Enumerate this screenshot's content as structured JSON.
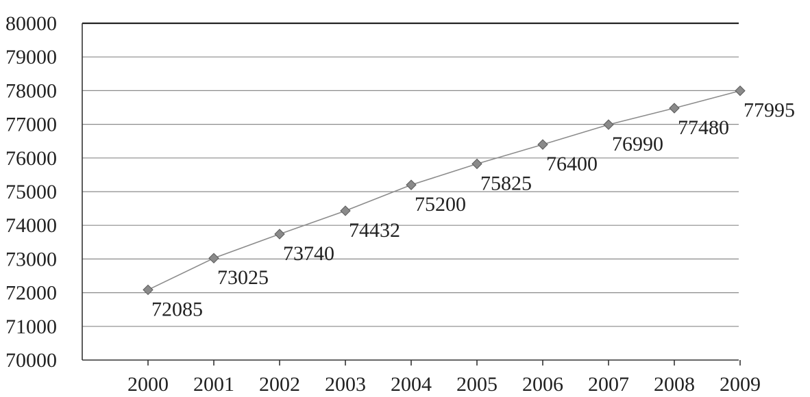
{
  "chart_data": {
    "type": "line",
    "title": "",
    "xlabel": "",
    "ylabel": "",
    "categories": [
      "2000",
      "2001",
      "2002",
      "2003",
      "2004",
      "2005",
      "2006",
      "2007",
      "2008",
      "2009"
    ],
    "series": [
      {
        "values": [
          72085,
          73025,
          73740,
          74432,
          75200,
          75825,
          76400,
          76990,
          77480,
          77995
        ],
        "data_labels": [
          "72085",
          "73025",
          "73740",
          "74432",
          "75200",
          "75825",
          "76400",
          "76990",
          "77480",
          "77995"
        ]
      }
    ],
    "ylim": [
      70000,
      80000
    ],
    "y_ticks": [
      "70000",
      "71000",
      "72000",
      "73000",
      "74000",
      "75000",
      "76000",
      "77000",
      "78000",
      "79000",
      "80000"
    ],
    "grid": "horizontal",
    "legend": "none",
    "marker": "diamond",
    "colors": {
      "line": "#8c8c8c",
      "marker": "#8a8a8a",
      "grid": "#8a8a8a",
      "axis": "#333333",
      "text": "#222222"
    }
  }
}
